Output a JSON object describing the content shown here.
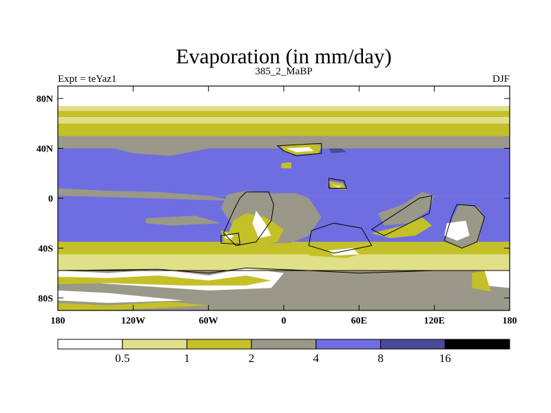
{
  "chart_data": {
    "type": "heatmap",
    "title": "Evaporation (in mm/day)",
    "left_label": "Expt = teYaz1",
    "center_label": "385_2_MaBP",
    "right_label": "DJF",
    "x_ticks": [
      "180",
      "120W",
      "60W",
      "0",
      "60E",
      "120E",
      "180"
    ],
    "y_ticks": [
      "80N",
      "40N",
      "0",
      "40S",
      "80S"
    ],
    "xlim": [
      -180,
      180
    ],
    "ylim": [
      -90,
      90
    ],
    "colorbar": {
      "levels": [
        "0.5",
        "1",
        "2",
        "4",
        "8",
        "16"
      ],
      "colors": [
        "#ffffff",
        "#e0e088",
        "#c4c028",
        "#9a9888",
        "#6e6ee0",
        "#4a4a98",
        "#000000"
      ]
    },
    "zonal_bands": [
      {
        "lat_max": 90,
        "lat_min": 74,
        "level": 0
      },
      {
        "lat_max": 74,
        "lat_min": 70,
        "level": 1
      },
      {
        "lat_max": 70,
        "lat_min": 65,
        "level": 2
      },
      {
        "lat_max": 65,
        "lat_min": 60,
        "level": 1
      },
      {
        "lat_max": 60,
        "lat_min": 50,
        "level": 2
      },
      {
        "lat_max": 50,
        "lat_min": 40,
        "level": 3
      },
      {
        "lat_max": 40,
        "lat_min": 2,
        "level": 4
      },
      {
        "lat_max": 2,
        "lat_min": -35,
        "level": 4
      },
      {
        "lat_max": -35,
        "lat_min": -45,
        "level": 2
      },
      {
        "lat_max": -45,
        "lat_min": -58,
        "level": 1
      },
      {
        "lat_max": -58,
        "lat_min": -90,
        "level": 3
      }
    ]
  }
}
